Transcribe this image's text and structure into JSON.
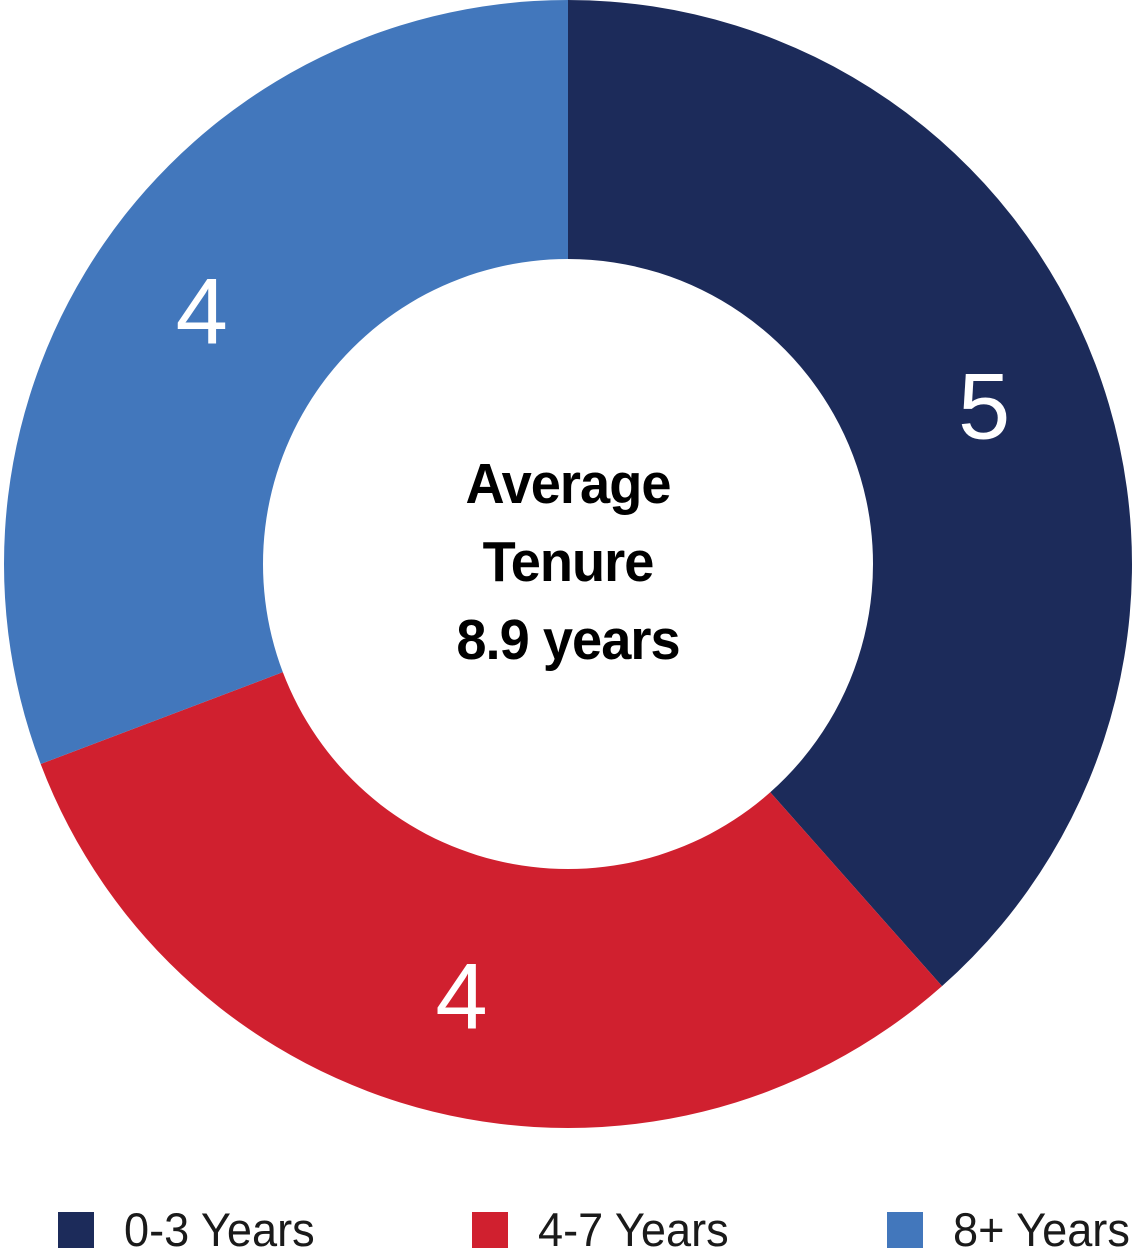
{
  "chart_data": {
    "type": "pie",
    "subtype": "donut",
    "title": "",
    "categories": [
      "0-3 Years",
      "4-7 Years",
      "8+ Years"
    ],
    "values": [
      5,
      4,
      4
    ],
    "total": 13,
    "colors": [
      "#1C2B5A",
      "#D0202F",
      "#4277BC"
    ],
    "slice_label_color": "#FFFFFF",
    "start_angle": "top",
    "direction": "clockwise",
    "inner_radius_ratio": 0.54,
    "legend_position": "bottom",
    "background_color": "#FFFFFF",
    "center_text": {
      "line1": "Average",
      "line2": "Tenure",
      "line3": "8.9 years"
    }
  },
  "legend": {
    "items": [
      {
        "label": "0-3 Years",
        "color": "#1C2B5A"
      },
      {
        "label": "4-7 Years",
        "color": "#D0202F"
      },
      {
        "label": "8+ Years",
        "color": "#4277BC"
      }
    ]
  }
}
